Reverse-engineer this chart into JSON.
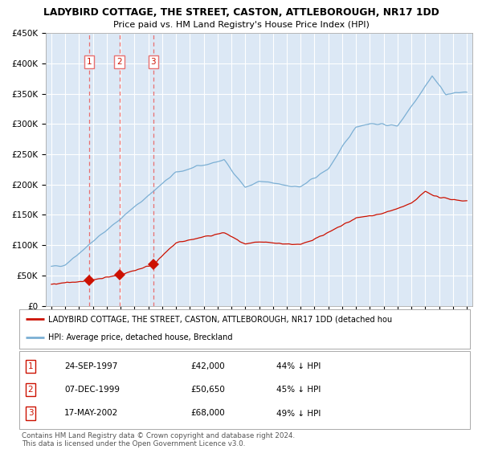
{
  "title": "LADYBIRD COTTAGE, THE STREET, CASTON, ATTLEBOROUGH, NR17 1DD",
  "subtitle": "Price paid vs. HM Land Registry's House Price Index (HPI)",
  "hpi_color": "#7bafd4",
  "price_color": "#cc1100",
  "vline_color": "#e87070",
  "marker_color": "#cc1100",
  "background_color": "#ffffff",
  "chart_bg_color": "#dce8f5",
  "grid_color": "#ffffff",
  "ylabel_ticks": [
    "£0",
    "£50K",
    "£100K",
    "£150K",
    "£200K",
    "£250K",
    "£300K",
    "£350K",
    "£400K",
    "£450K"
  ],
  "ytick_values": [
    0,
    50000,
    100000,
    150000,
    200000,
    250000,
    300000,
    350000,
    400000,
    450000
  ],
  "xmin": 1994.6,
  "xmax": 2025.4,
  "ymin": 0,
  "ymax": 450000,
  "sales": [
    {
      "year": 1997.73,
      "price": 42000,
      "label": "1"
    },
    {
      "year": 1999.93,
      "price": 50650,
      "label": "2"
    },
    {
      "year": 2002.37,
      "price": 68000,
      "label": "3"
    }
  ],
  "legend_price_label": "LADYBIRD COTTAGE, THE STREET, CASTON, ATTLEBOROUGH, NR17 1DD (detached hou",
  "legend_hpi_label": "HPI: Average price, detached house, Breckland",
  "table_rows": [
    {
      "num": "1",
      "date": "24-SEP-1997",
      "price": "£42,000",
      "pct": "44% ↓ HPI"
    },
    {
      "num": "2",
      "date": "07-DEC-1999",
      "price": "£50,650",
      "pct": "45% ↓ HPI"
    },
    {
      "num": "3",
      "date": "17-MAY-2002",
      "price": "£68,000",
      "pct": "49% ↓ HPI"
    }
  ],
  "footer": "Contains HM Land Registry data © Crown copyright and database right 2024.\nThis data is licensed under the Open Government Licence v3.0."
}
